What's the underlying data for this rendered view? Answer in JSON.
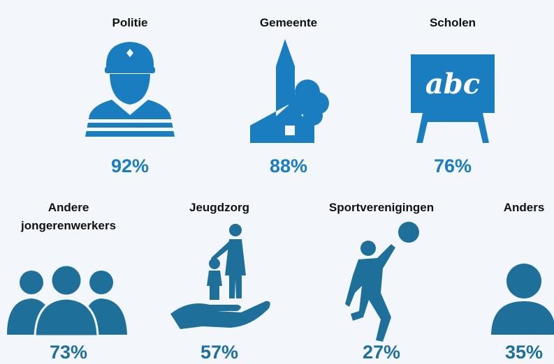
{
  "items": [
    {
      "label": [
        "Politie"
      ],
      "value": "92%"
    },
    {
      "label": [
        "Gemeente"
      ],
      "value": "88%"
    },
    {
      "label": [
        "Scholen"
      ],
      "value": "76%"
    },
    {
      "label": [
        "Andere",
        "jongerenwerkers"
      ],
      "value": "73%"
    },
    {
      "label": [
        "Jeugdzorg"
      ],
      "value": "57%"
    },
    {
      "label": [
        "Sportverenigingen"
      ],
      "value": "27%"
    },
    {
      "label": [
        "Anders"
      ],
      "value": "35%"
    }
  ],
  "board_text": "abc"
}
